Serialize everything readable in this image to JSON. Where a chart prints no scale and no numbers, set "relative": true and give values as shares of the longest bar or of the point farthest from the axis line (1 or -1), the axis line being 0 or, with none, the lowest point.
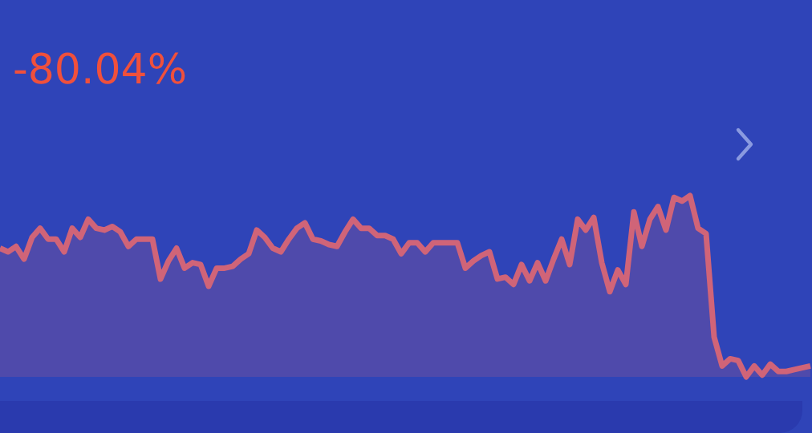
{
  "chart_data": {
    "type": "area",
    "title": "-80.04%",
    "relative": true,
    "legend": false,
    "marker": "none",
    "categories": [
      null,
      null,
      null,
      null,
      null,
      null,
      null,
      null,
      null,
      null,
      null,
      null,
      null,
      null,
      null,
      null,
      null,
      null,
      null,
      null,
      null,
      null,
      null,
      null,
      null,
      null,
      null,
      null,
      null,
      null,
      null,
      null,
      null,
      null,
      null,
      null,
      null,
      null,
      null,
      null,
      null,
      null,
      null,
      null,
      null,
      null,
      null,
      null,
      null,
      null,
      null,
      null,
      null,
      null,
      null,
      null,
      null,
      null,
      null,
      null,
      null,
      null,
      null,
      null,
      null,
      null,
      null,
      null,
      null,
      null,
      null,
      null,
      null,
      null,
      null,
      null,
      null,
      null,
      null,
      null,
      null,
      null,
      null,
      null,
      null,
      null,
      null,
      null,
      null,
      null,
      null,
      null,
      null,
      null,
      null,
      null,
      null,
      null,
      null,
      null,
      null,
      null
    ],
    "series": [
      {
        "color": "#d06478",
        "values": [
          0.71,
          0.69,
          0.72,
          0.65,
          0.77,
          0.82,
          0.76,
          0.76,
          0.69,
          0.82,
          0.77,
          0.87,
          0.82,
          0.81,
          0.83,
          0.8,
          0.72,
          0.76,
          0.76,
          0.76,
          0.54,
          0.64,
          0.71,
          0.6,
          0.63,
          0.62,
          0.5,
          0.6,
          0.6,
          0.61,
          0.65,
          0.68,
          0.81,
          0.77,
          0.71,
          0.69,
          0.76,
          0.82,
          0.85,
          0.76,
          0.75,
          0.73,
          0.72,
          0.8,
          0.87,
          0.82,
          0.82,
          0.78,
          0.78,
          0.76,
          0.68,
          0.74,
          0.74,
          0.69,
          0.74,
          0.74,
          0.74,
          0.74,
          0.6,
          0.64,
          0.67,
          0.69,
          0.54,
          0.55,
          0.51,
          0.62,
          0.53,
          0.63,
          0.53,
          0.65,
          0.76,
          0.62,
          0.87,
          0.81,
          0.88,
          0.63,
          0.47,
          0.59,
          0.51,
          0.91,
          0.72,
          0.87,
          0.94,
          0.81,
          0.99,
          0.97,
          1,
          0.82,
          0.79,
          0.22,
          0.06,
          0.1,
          0.09,
          0,
          0.06,
          0.01,
          0.07,
          0.03,
          0.03,
          0.04,
          0.05,
          0.06
        ]
      }
    ]
  }
}
